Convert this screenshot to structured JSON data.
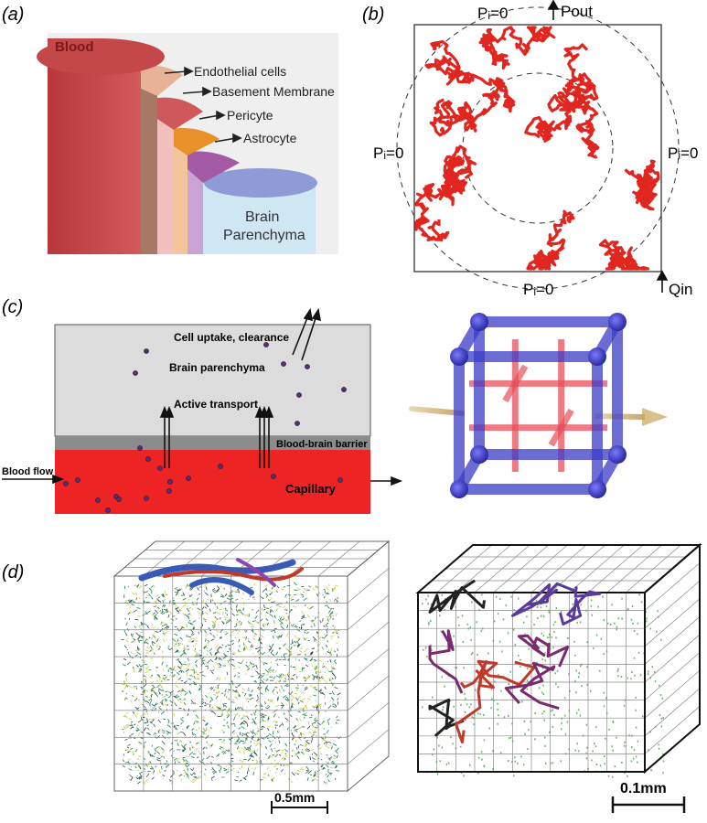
{
  "panel_labels": {
    "a": "(a)",
    "b": "(b)",
    "c": "(c)",
    "d": "(d)"
  },
  "panel_a": {
    "blood": "Blood",
    "layers": [
      "Endothelial cells",
      "Basement Membrane",
      "Pericyte",
      "Astrocyte"
    ],
    "brain_line1": "Brain",
    "brain_line2": "Parenchyma",
    "colors": {
      "blood": "#c4474a",
      "endothelial": "#e8b296",
      "basement": "#cf585c",
      "pericyte": "#e8902a",
      "astrocyte": "#a55aa5",
      "brain": "#cfe7f2"
    }
  },
  "panel_b": {
    "top": "Pᵢ=0",
    "left": "Pᵢ=0",
    "right": "Pᵢ=0",
    "bottom": "Pᵢ=0",
    "out_label": "Pout",
    "in_label": "Qin",
    "network_color": "#e0261f"
  },
  "panel_c": {
    "cell_uptake": "Cell uptake, clearance",
    "brain_parenchyma": "Brain parenchyma",
    "active_transport": "Active transport",
    "bbb": "Blood-brain barrier",
    "blood_flow": "Blood flow",
    "capillary": "Capillary",
    "colors": {
      "parenchyma": "#dcdcdc",
      "barrier": "#8c8c8c",
      "capillary": "#ee2424",
      "cube_outer": "#3c3cc8",
      "cube_inner": "#e8505a"
    }
  },
  "panel_d": {
    "scale_left": "0.5mm",
    "scale_right": "0.1mm"
  }
}
